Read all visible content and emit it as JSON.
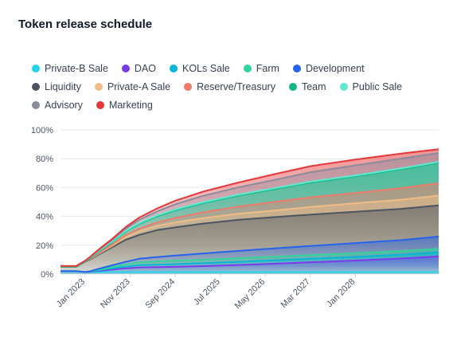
{
  "chart_data": {
    "type": "area",
    "title": "Token release schedule",
    "xlabel": "",
    "ylabel": "",
    "ylim": [
      0,
      100
    ],
    "y_ticks": [
      "0%",
      "20%",
      "40%",
      "60%",
      "80%",
      "100%"
    ],
    "x_ticks": [
      "Jan 2023",
      "Nov 2023",
      "Sep 2024",
      "Jul 2025",
      "May 2026",
      "Mar 2027",
      "Jan 2028"
    ],
    "x_tick_t": [
      0.0,
      0.1,
      0.2,
      0.3,
      0.4,
      0.5,
      0.6
    ],
    "x_range_t": [
      -0.055,
      0.785
    ],
    "stacked": true,
    "grid": true,
    "legend_position": "top",
    "t": [
      -0.055,
      -0.02,
      0.0,
      0.01,
      0.03,
      0.06,
      0.09,
      0.12,
      0.16,
      0.2,
      0.26,
      0.34,
      0.42,
      0.5,
      0.6,
      0.7,
      0.785
    ],
    "series": [
      {
        "name": "Private-B Sale",
        "color": "#22d3ee",
        "values": [
          2.0,
          2.0,
          1.4,
          1.4,
          1.4,
          1.4,
          1.4,
          1.4,
          1.4,
          1.4,
          1.4,
          1.4,
          1.4,
          1.4,
          1.4,
          1.4,
          1.4
        ]
      },
      {
        "name": "DAO",
        "color": "#7c3aed",
        "values": [
          0,
          0,
          0,
          0.2,
          0.8,
          1.7,
          2.6,
          3.2,
          3.4,
          3.6,
          4.1,
          4.9,
          5.8,
          6.8,
          8.0,
          9.4,
          10.9
        ]
      },
      {
        "name": "KOLs Sale",
        "color": "#06b6d4",
        "values": [
          0,
          0,
          0,
          0.1,
          0.4,
          0.8,
          1.2,
          1.6,
          1.8,
          1.9,
          2.0,
          2.2,
          2.3,
          2.4,
          2.5,
          2.6,
          2.7
        ]
      },
      {
        "name": "Farm",
        "color": "#34d399",
        "values": [
          0,
          0,
          0,
          0.1,
          0.5,
          1.0,
          1.5,
          2.0,
          2.2,
          2.3,
          2.4,
          2.5,
          2.5,
          2.5,
          2.5,
          2.5,
          2.5
        ]
      },
      {
        "name": "Development",
        "color": "#2563eb",
        "values": [
          0,
          0,
          0,
          0.1,
          0.6,
          1.2,
          1.8,
          2.4,
          3.0,
          3.6,
          4.3,
          5.1,
          5.8,
          6.4,
          7.1,
          7.6,
          8.5
        ]
      },
      {
        "name": "Liquidity",
        "color": "#4b5563",
        "values": [
          3.0,
          3.0,
          7.3,
          8.0,
          9.9,
          12.5,
          15.3,
          16.6,
          18.7,
          19.6,
          20.7,
          21.5,
          21.7,
          21.7,
          21.7,
          21.7,
          21.7
        ]
      },
      {
        "name": "Private-A Sale",
        "color": "#f1bc86",
        "values": [
          0,
          0,
          0,
          0.3,
          0.6,
          1.0,
          1.8,
          2.4,
          2.9,
          3.4,
          3.8,
          4.2,
          4.5,
          5.3,
          5.9,
          6.3,
          6.7
        ]
      },
      {
        "name": "Reserve/Treasury",
        "color": "#f07a6a",
        "values": [
          0,
          0,
          0,
          0.2,
          0.5,
          0.9,
          1.4,
          1.9,
          2.4,
          3.1,
          4.0,
          5.0,
          6.0,
          6.7,
          7.1,
          8.0,
          8.6
        ]
      },
      {
        "name": "Team",
        "color": "#10b981",
        "values": [
          0,
          0,
          0,
          0.3,
          0.8,
          1.6,
          2.4,
          3.3,
          4.3,
          5.3,
          6.4,
          7.6,
          8.9,
          10.3,
          11.6,
          13.1,
          14.2
        ]
      },
      {
        "name": "Public Sale",
        "color": "#5eead4",
        "values": [
          0.6,
          0.6,
          0.6,
          0.6,
          0.6,
          0.6,
          0.6,
          0.6,
          0.6,
          0.6,
          0.6,
          0.6,
          0.6,
          0.6,
          0.6,
          0.6,
          0.6
        ]
      },
      {
        "name": "Advisory",
        "color": "#8b8b9e",
        "values": [
          0,
          0,
          0,
          0.3,
          0.6,
          1.0,
          1.5,
          2.2,
          2.8,
          3.6,
          4.4,
          5.1,
          5.8,
          6.5,
          7.0,
          6.8,
          6.1
        ]
      },
      {
        "name": "Marketing",
        "color": "#e5383b",
        "values": [
          0,
          0,
          0,
          0.1,
          0.4,
          0.7,
          1.1,
          1.6,
          2.1,
          2.5,
          2.9,
          3.4,
          4.0,
          4.2,
          4.0,
          3.5,
          2.7
        ]
      }
    ]
  }
}
